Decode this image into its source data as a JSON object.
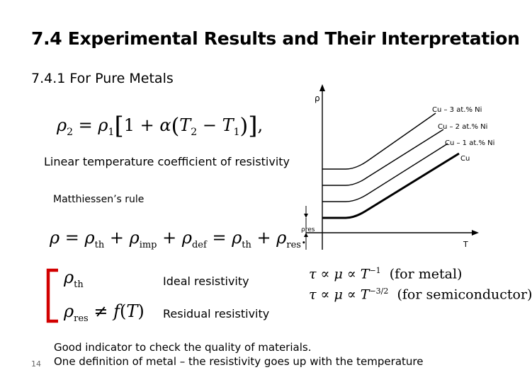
{
  "slide": {
    "title": "7.4 Experimental Results and Their Interpretation",
    "subtitle": "7.4.1 For Pure Metals",
    "linear_coeff_label": "Linear temperature coefficient of resistivity",
    "matthiessen_label": "Matthiessen’s rule",
    "ideal_label": "Ideal resistivity",
    "residual_label": "Residual resistivity",
    "bottom_line_1": "Good indicator to check the quality of materials.",
    "bottom_line_2": "One definition of metal – the resistivity goes up with the temperature",
    "page_number": "14"
  },
  "equations": {
    "rho2": "ρ₂ = ρ₁[1 + α(T₂ − T₁)],",
    "matthiessen": "ρ = ρth + ρimp + ρdef = ρth + ρres.",
    "rho_th": "ρth",
    "rho_res": "ρres ≠ f(T)",
    "tau_metal": "τ ∝ μ ∝ T⁻¹ (for metal)",
    "tau_semi": "τ ∝ μ ∝ T⁻³ᐟ² (for semiconductor)"
  },
  "figure": {
    "y_label": "ρ",
    "x_label": "T",
    "rho_res_label": "ρres",
    "curves": [
      "Cu – 3 at.% Ni",
      "Cu – 2 at.% Ni",
      "Cu – 1 at.% Ni",
      "Cu"
    ]
  }
}
